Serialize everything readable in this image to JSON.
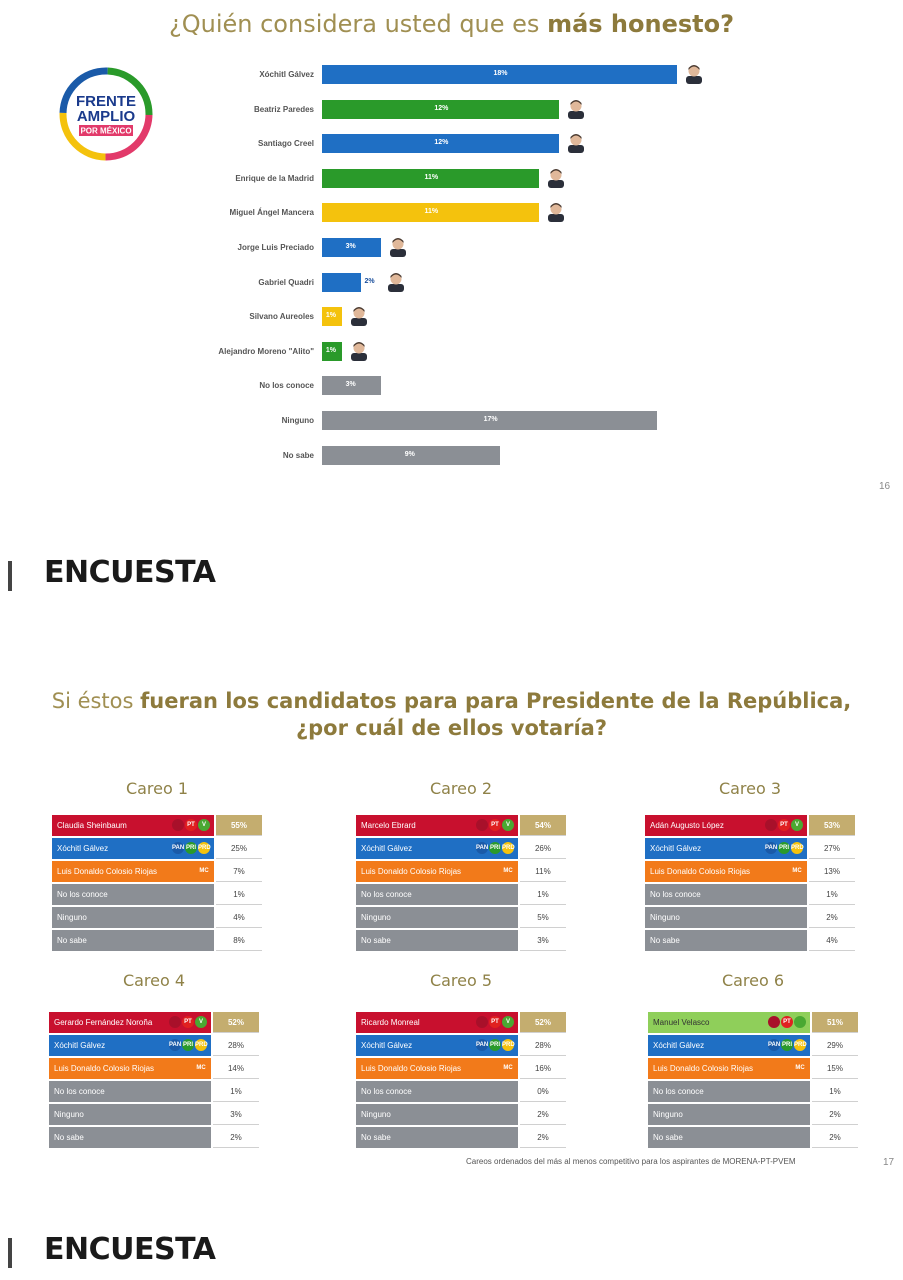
{
  "chart1": {
    "title_prefix": "¿Quién considera usted que es ",
    "title_bold": "más honesto?",
    "logo": {
      "line1": "FRENTE",
      "line2": "AMPLIO",
      "line3": "POR MÉXICO"
    },
    "page_number": "16"
  },
  "chart_data": [
    {
      "type": "bar",
      "orientation": "horizontal",
      "title": "¿Quién considera usted que es más honesto?",
      "categories": [
        "Xóchitl Gálvez",
        "Beatriz Paredes",
        "Santiago Creel",
        "Enrique de la Madrid",
        "Miguel Ángel Mancera",
        "Jorge Luis Preciado",
        "Gabriel Quadri",
        "Silvano Aureoles",
        "Alejandro Moreno \"Alito\"",
        "No los conoce",
        "Ninguno",
        "No sabe"
      ],
      "values": [
        18,
        12,
        12,
        11,
        11,
        3,
        2,
        1,
        1,
        3,
        17,
        9
      ],
      "labels": [
        "18%",
        "12%",
        "12%",
        "11%",
        "11%",
        "3%",
        "2%",
        "1%",
        "1%",
        "3%",
        "17%",
        "9%"
      ],
      "colors": [
        "#1f6fc4",
        "#2a9a2a",
        "#1f6fc4",
        "#2a9a2a",
        "#f4c20d",
        "#1f6fc4",
        "#1f6fc4",
        "#f4c20d",
        "#2a9a2a",
        "#8b8f95",
        "#8b8f95",
        "#8b8f95"
      ],
      "faces": [
        true,
        true,
        true,
        true,
        true,
        true,
        true,
        true,
        true,
        false,
        false,
        false
      ],
      "xlim": [
        0,
        18
      ]
    },
    {
      "type": "table",
      "title": "Si éstos fueran los candidatos para para Presidente de la República, ¿por cuál de ellos votaría?",
      "careos": [
        {
          "title": "Careo 1",
          "rows": [
            {
              "name": "Claudia Sheinbaum",
              "value": "55%",
              "color": "#c8102e",
              "icons": "morena",
              "win": true
            },
            {
              "name": "Xóchitl Gálvez",
              "value": "25%",
              "color": "#1f6fc4",
              "icons": "frente"
            },
            {
              "name": "Luis Donaldo Colosio Riojas",
              "value": "7%",
              "color": "#f27a1a",
              "icons": "mc"
            },
            {
              "name": "No los conoce",
              "value": "1%",
              "color": "#8b8f95"
            },
            {
              "name": "Ninguno",
              "value": "4%",
              "color": "#8b8f95"
            },
            {
              "name": "No sabe",
              "value": "8%",
              "color": "#8b8f95"
            }
          ]
        },
        {
          "title": "Careo 2",
          "rows": [
            {
              "name": "Marcelo Ebrard",
              "value": "54%",
              "color": "#c8102e",
              "icons": "morena",
              "win": true
            },
            {
              "name": "Xóchitl Gálvez",
              "value": "26%",
              "color": "#1f6fc4",
              "icons": "frente"
            },
            {
              "name": "Luis Donaldo Colosio Riojas",
              "value": "11%",
              "color": "#f27a1a",
              "icons": "mc"
            },
            {
              "name": "No los conoce",
              "value": "1%",
              "color": "#8b8f95"
            },
            {
              "name": "Ninguno",
              "value": "5%",
              "color": "#8b8f95"
            },
            {
              "name": "No sabe",
              "value": "3%",
              "color": "#8b8f95"
            }
          ]
        },
        {
          "title": "Careo 3",
          "rows": [
            {
              "name": "Adán Augusto López",
              "value": "53%",
              "color": "#c8102e",
              "icons": "morena",
              "win": true
            },
            {
              "name": "Xóchitl Gálvez",
              "value": "27%",
              "color": "#1f6fc4",
              "icons": "frente"
            },
            {
              "name": "Luis Donaldo Colosio Riojas",
              "value": "13%",
              "color": "#f27a1a",
              "icons": "mc"
            },
            {
              "name": "No los conoce",
              "value": "1%",
              "color": "#8b8f95"
            },
            {
              "name": "Ninguno",
              "value": "2%",
              "color": "#8b8f95"
            },
            {
              "name": "No sabe",
              "value": "4%",
              "color": "#8b8f95"
            }
          ]
        },
        {
          "title": "Careo 4",
          "rows": [
            {
              "name": "Gerardo Fernández Noroña",
              "value": "52%",
              "color": "#c8102e",
              "icons": "morena",
              "win": true
            },
            {
              "name": "Xóchitl Gálvez",
              "value": "28%",
              "color": "#1f6fc4",
              "icons": "frente"
            },
            {
              "name": "Luis Donaldo Colosio Riojas",
              "value": "14%",
              "color": "#f27a1a",
              "icons": "mc"
            },
            {
              "name": "No los conoce",
              "value": "1%",
              "color": "#8b8f95"
            },
            {
              "name": "Ninguno",
              "value": "3%",
              "color": "#8b8f95"
            },
            {
              "name": "No sabe",
              "value": "2%",
              "color": "#8b8f95"
            }
          ]
        },
        {
          "title": "Careo 5",
          "rows": [
            {
              "name": "Ricardo Monreal",
              "value": "52%",
              "color": "#c8102e",
              "icons": "morena",
              "win": true
            },
            {
              "name": "Xóchitl Gálvez",
              "value": "28%",
              "color": "#1f6fc4",
              "icons": "frente"
            },
            {
              "name": "Luis Donaldo Colosio Riojas",
              "value": "16%",
              "color": "#f27a1a",
              "icons": "mc"
            },
            {
              "name": "No los conoce",
              "value": "0%",
              "color": "#8b8f95"
            },
            {
              "name": "Ninguno",
              "value": "2%",
              "color": "#8b8f95"
            },
            {
              "name": "No sabe",
              "value": "2%",
              "color": "#8b8f95"
            }
          ]
        },
        {
          "title": "Careo 6",
          "rows": [
            {
              "name": "Manuel Velasco",
              "value": "51%",
              "color": "#8fcf5a",
              "icons": "verde",
              "win": true,
              "dark": true
            },
            {
              "name": "Xóchitl Gálvez",
              "value": "29%",
              "color": "#1f6fc4",
              "icons": "frente"
            },
            {
              "name": "Luis Donaldo Colosio Riojas",
              "value": "15%",
              "color": "#f27a1a",
              "icons": "mc"
            },
            {
              "name": "No los conoce",
              "value": "1%",
              "color": "#8b8f95"
            },
            {
              "name": "Ninguno",
              "value": "2%",
              "color": "#8b8f95"
            },
            {
              "name": "No sabe",
              "value": "2%",
              "color": "#8b8f95"
            }
          ]
        }
      ]
    }
  ],
  "sections": [
    "ENCUESTA",
    "ENCUESTA"
  ],
  "chart2": {
    "title_line1_a": "Si éstos ",
    "title_line1_b": "fueran los candidatos para para Presidente de la República,",
    "title_line2": "¿por cuál de ellos votaría?",
    "footnote": "Careos ordenados del más al menos competitivo para los aspirantes de MORENA-PT-PVEM",
    "page_number": "17"
  },
  "icon_sets": {
    "morena": [
      {
        "t": "",
        "c": "#a8102a"
      },
      {
        "t": "PT",
        "c": "#e02020"
      },
      {
        "t": "V",
        "c": "#4aa832"
      }
    ],
    "frente": [
      {
        "t": "PAN",
        "c": "#1a5aa8"
      },
      {
        "t": "PRI",
        "c": "#2a9a2a"
      },
      {
        "t": "PRD",
        "c": "#f4c20d"
      }
    ],
    "mc": [
      {
        "t": "MC",
        "c": "#f27a1a"
      }
    ],
    "verde": [
      {
        "t": "",
        "c": "#a8102a"
      },
      {
        "t": "PT",
        "c": "#e02020"
      },
      {
        "t": "",
        "c": "#4aa832"
      }
    ]
  }
}
